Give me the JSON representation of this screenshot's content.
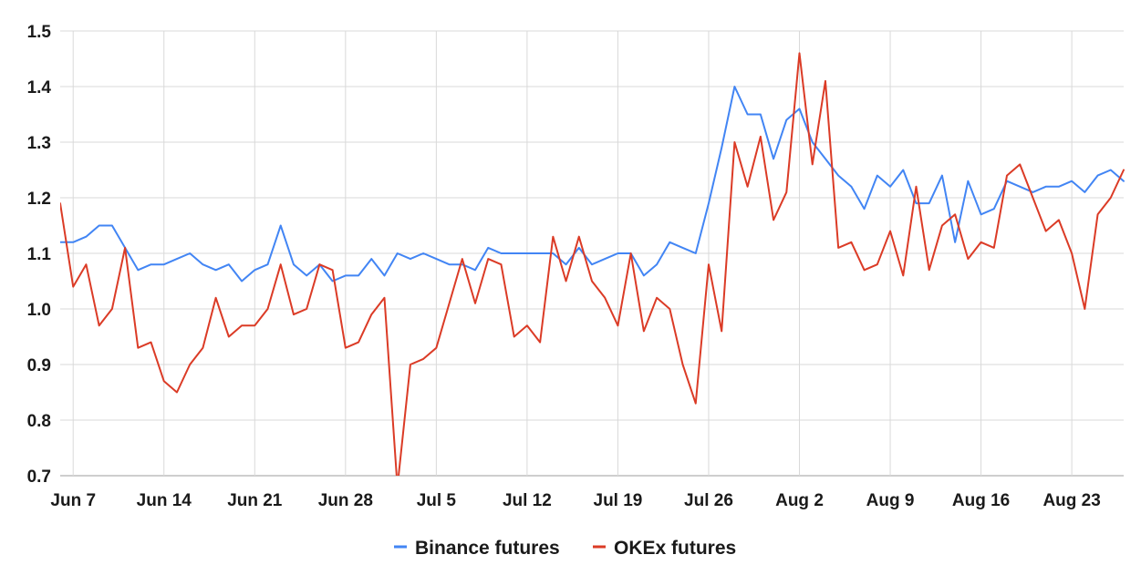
{
  "chart_data": {
    "type": "line",
    "title": "",
    "xlabel": "",
    "ylabel": "",
    "ylim": [
      0.7,
      1.5
    ],
    "yticks": [
      "0.7",
      "0.8",
      "0.9",
      "1.0",
      "1.1",
      "1.2",
      "1.3",
      "1.4",
      "1.5"
    ],
    "xticks": [
      "Jun 7",
      "Jun 14",
      "Jun 21",
      "Jun 28",
      "Jul 5",
      "Jul 12",
      "Jul 19",
      "Jul 26",
      "Aug 2",
      "Aug 9",
      "Aug 16",
      "Aug 23"
    ],
    "x": [
      "Jun 6",
      "Jun 7",
      "Jun 8",
      "Jun 9",
      "Jun 10",
      "Jun 11",
      "Jun 12",
      "Jun 13",
      "Jun 14",
      "Jun 15",
      "Jun 16",
      "Jun 17",
      "Jun 18",
      "Jun 19",
      "Jun 20",
      "Jun 21",
      "Jun 22",
      "Jun 23",
      "Jun 24",
      "Jun 25",
      "Jun 26",
      "Jun 27",
      "Jun 28",
      "Jun 29",
      "Jun 30",
      "Jul 1",
      "Jul 2",
      "Jul 3",
      "Jul 4",
      "Jul 5",
      "Jul 6",
      "Jul 7",
      "Jul 8",
      "Jul 9",
      "Jul 10",
      "Jul 11",
      "Jul 12",
      "Jul 13",
      "Jul 14",
      "Jul 15",
      "Jul 16",
      "Jul 17",
      "Jul 18",
      "Jul 19",
      "Jul 20",
      "Jul 21",
      "Jul 22",
      "Jul 23",
      "Jul 24",
      "Jul 25",
      "Jul 26",
      "Jul 27",
      "Jul 28",
      "Jul 29",
      "Jul 30",
      "Jul 31",
      "Aug 1",
      "Aug 2",
      "Aug 3",
      "Aug 4",
      "Aug 5",
      "Aug 6",
      "Aug 7",
      "Aug 8",
      "Aug 9",
      "Aug 10",
      "Aug 11",
      "Aug 12",
      "Aug 13",
      "Aug 14",
      "Aug 15",
      "Aug 16",
      "Aug 17",
      "Aug 18",
      "Aug 19",
      "Aug 20",
      "Aug 21",
      "Aug 22",
      "Aug 23",
      "Aug 24",
      "Aug 25",
      "Aug 26",
      "Aug 27"
    ],
    "series": [
      {
        "name": "Binance futures",
        "color": "#4285f4",
        "values": [
          1.12,
          1.12,
          1.13,
          1.15,
          1.15,
          1.11,
          1.07,
          1.08,
          1.08,
          1.09,
          1.1,
          1.08,
          1.07,
          1.08,
          1.05,
          1.07,
          1.08,
          1.15,
          1.08,
          1.06,
          1.08,
          1.05,
          1.06,
          1.06,
          1.09,
          1.06,
          1.1,
          1.09,
          1.1,
          1.09,
          1.08,
          1.08,
          1.07,
          1.11,
          1.1,
          1.1,
          1.1,
          1.1,
          1.1,
          1.08,
          1.11,
          1.08,
          1.09,
          1.1,
          1.1,
          1.06,
          1.08,
          1.12,
          1.11,
          1.1,
          1.19,
          1.29,
          1.4,
          1.35,
          1.35,
          1.27,
          1.34,
          1.36,
          1.3,
          1.27,
          1.24,
          1.22,
          1.18,
          1.24,
          1.22,
          1.25,
          1.19,
          1.19,
          1.24,
          1.12,
          1.23,
          1.17,
          1.18,
          1.23,
          1.22,
          1.21,
          1.22,
          1.22,
          1.23,
          1.21,
          1.24,
          1.25,
          1.23
        ]
      },
      {
        "name": "OKEx futures",
        "color": "#db3b26",
        "values": [
          1.19,
          1.04,
          1.08,
          0.97,
          1.0,
          1.11,
          0.93,
          0.94,
          0.87,
          0.85,
          0.9,
          0.93,
          1.02,
          0.95,
          0.97,
          0.97,
          1.0,
          1.08,
          0.99,
          1.0,
          1.08,
          1.07,
          0.93,
          0.94,
          0.99,
          1.02,
          0.68,
          0.9,
          0.91,
          0.93,
          1.01,
          1.09,
          1.01,
          1.09,
          1.08,
          0.95,
          0.97,
          0.94,
          1.13,
          1.05,
          1.13,
          1.05,
          1.02,
          0.97,
          1.1,
          0.96,
          1.02,
          1.0,
          0.9,
          0.83,
          1.08,
          0.96,
          1.3,
          1.22,
          1.31,
          1.16,
          1.21,
          1.46,
          1.26,
          1.41,
          1.11,
          1.12,
          1.07,
          1.08,
          1.14,
          1.06,
          1.22,
          1.07,
          1.15,
          1.17,
          1.09,
          1.12,
          1.11,
          1.24,
          1.26,
          1.2,
          1.14,
          1.16,
          1.1,
          1.0,
          1.17,
          1.2,
          1.25
        ]
      }
    ],
    "grid": true,
    "legend": "bottom-center"
  }
}
